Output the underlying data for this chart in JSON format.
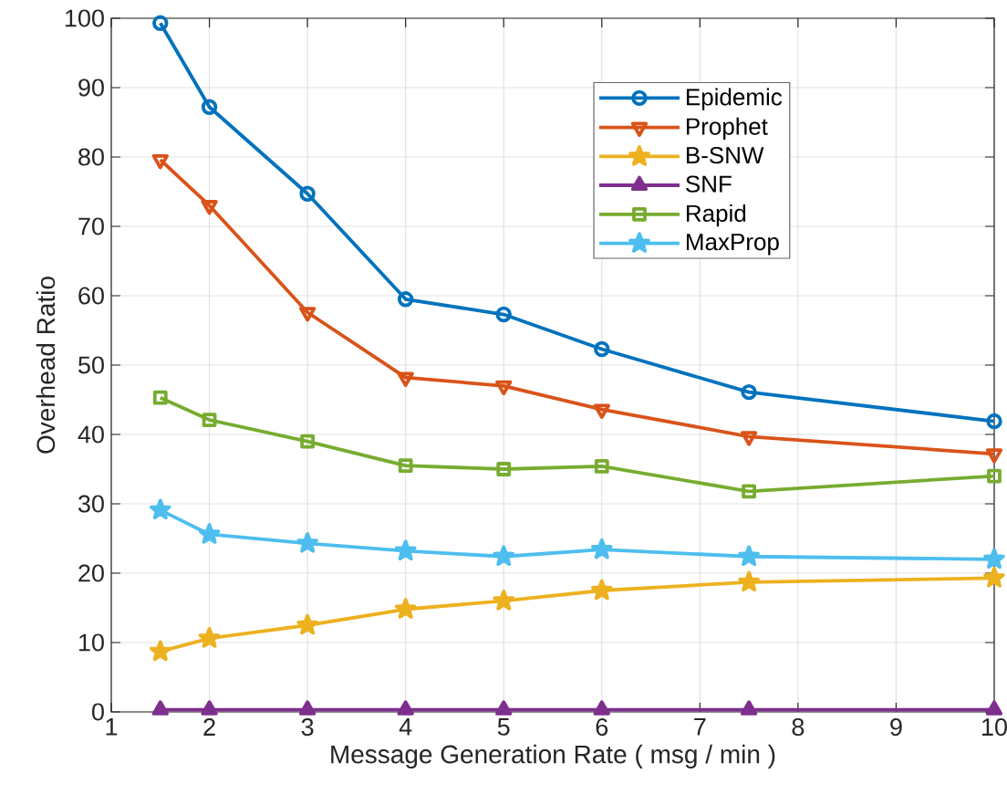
{
  "chart_data": {
    "type": "line",
    "xlabel": "Message Generation Rate ( msg / min )",
    "ylabel": "Overhead Ratio",
    "x": [
      1.5,
      2,
      3,
      4,
      5,
      6,
      7.5,
      10
    ],
    "series": [
      {
        "name": "Epidemic",
        "color": "#0072bd",
        "marker": "circle",
        "values": [
          99.3,
          87.2,
          74.7,
          59.5,
          57.3,
          52.3,
          46.1,
          41.9
        ]
      },
      {
        "name": "Prophet",
        "color": "#d95319",
        "marker": "triangle-down",
        "values": [
          79.6,
          73.0,
          57.6,
          48.2,
          47.0,
          43.6,
          39.7,
          37.2
        ]
      },
      {
        "name": "B-SNW",
        "color": "#edb120",
        "marker": "star",
        "values": [
          8.7,
          10.6,
          12.5,
          14.8,
          16.0,
          17.5,
          18.7,
          19.3
        ]
      },
      {
        "name": "SNF",
        "color": "#7e2f8e",
        "marker": "triangle",
        "values": [
          0.3,
          0.3,
          0.3,
          0.3,
          0.3,
          0.3,
          0.3,
          0.3
        ]
      },
      {
        "name": "Rapid",
        "color": "#77ac30",
        "marker": "square",
        "values": [
          45.3,
          42.1,
          39.0,
          35.5,
          35.0,
          35.4,
          31.8,
          34.0
        ]
      },
      {
        "name": "MaxProp",
        "color": "#4dbeee",
        "marker": "star",
        "values": [
          29.1,
          25.6,
          24.3,
          23.2,
          22.4,
          23.4,
          22.4,
          22.0
        ]
      }
    ],
    "xlim": [
      1,
      10
    ],
    "xticks": [
      1,
      2,
      3,
      4,
      5,
      6,
      7,
      8,
      9,
      10
    ],
    "ylim": [
      0,
      100
    ],
    "yticks": [
      0,
      10,
      20,
      30,
      40,
      50,
      60,
      70,
      80,
      90,
      100
    ],
    "grid": true,
    "legend": "top right",
    "line_style": "solid"
  }
}
